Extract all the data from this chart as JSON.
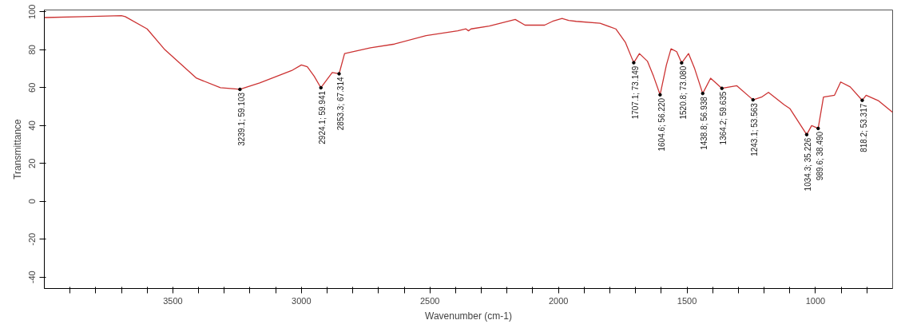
{
  "chart_data": {
    "type": "line",
    "xlabel": "Wavenumber (cm-1)",
    "ylabel": "Transmittance",
    "xlim": [
      4000,
      700
    ],
    "ylim": [
      -46,
      101
    ],
    "xticks": [
      {
        "value": 3900,
        "label": null
      },
      {
        "value": 3800,
        "label": null
      },
      {
        "value": 3700,
        "label": null
      },
      {
        "value": 3600,
        "label": null
      },
      3500,
      {
        "value": 3400,
        "label": null
      },
      {
        "value": 3300,
        "label": null
      },
      {
        "value": 3200,
        "label": null
      },
      {
        "value": 3100,
        "label": null
      },
      3000,
      {
        "value": 2900,
        "label": null
      },
      {
        "value": 2800,
        "label": null
      },
      {
        "value": 2700,
        "label": null
      },
      {
        "value": 2600,
        "label": null
      },
      2500,
      {
        "value": 2400,
        "label": null
      },
      {
        "value": 2300,
        "label": null
      },
      {
        "value": 2200,
        "label": null
      },
      {
        "value": 2100,
        "label": null
      },
      2000,
      {
        "value": 1900,
        "label": null
      },
      {
        "value": 1800,
        "label": null
      },
      {
        "value": 1700,
        "label": null
      },
      {
        "value": 1600,
        "label": null
      },
      1500,
      {
        "value": 1400,
        "label": null
      },
      {
        "value": 1300,
        "label": null
      },
      {
        "value": 1200,
        "label": null
      },
      {
        "value": 1100,
        "label": null
      },
      1000,
      {
        "value": 900,
        "label": null
      },
      {
        "value": 800,
        "label": null
      }
    ],
    "yticks": [
      -40,
      -20,
      0,
      20,
      40,
      60,
      80,
      100
    ],
    "grid": false,
    "line_style": "solid",
    "marker": "none",
    "series": [
      {
        "color": "#cc3333",
        "x": [
          4000,
          3850,
          3700,
          3685,
          3600,
          3531,
          3408,
          3315,
          3239.1,
          3162,
          3038,
          3000,
          2977,
          2950,
          2924.1,
          2880,
          2853.3,
          2832,
          2731,
          2638,
          2515,
          2392,
          2360,
          2350,
          2340,
          2269,
          2168,
          2130,
          2054,
          2023,
          1986,
          1960,
          1931,
          1838,
          1777,
          1740,
          1707.1,
          1685,
          1654,
          1630,
          1604.6,
          1580,
          1562,
          1540,
          1520.8,
          1494,
          1470,
          1438.8,
          1408,
          1364.2,
          1306,
          1243.1,
          1210,
          1183,
          1122,
          1100,
          1034.3,
          1015,
          989.6,
          969,
          926,
          902,
          865,
          818.2,
          803,
          754,
          700
        ],
        "values": [
          97,
          97.5,
          98,
          97.5,
          91,
          80,
          65,
          60,
          59.103,
          62.5,
          69,
          72,
          71,
          66,
          59.941,
          68,
          67.314,
          78,
          81,
          83,
          87.5,
          90,
          91,
          90,
          91,
          92.5,
          96,
          93,
          93,
          95,
          96.5,
          95.5,
          95,
          94,
          91,
          84,
          73.149,
          78,
          74,
          66,
          56.22,
          72,
          80.5,
          79,
          73.08,
          78,
          70,
          56.938,
          65,
          59.635,
          61,
          53.563,
          55,
          57.5,
          51,
          49,
          35.226,
          40,
          38.49,
          55,
          56,
          63,
          60.4,
          53.317,
          56,
          53,
          47
        ]
      }
    ],
    "annotations": [
      {
        "text": "3239.1; 59.103",
        "x": 3239.1,
        "y": 59.103
      },
      {
        "text": "2924.1; 59.941",
        "x": 2924.1,
        "y": 59.941
      },
      {
        "text": "2853.3; 67.314",
        "x": 2853.3,
        "y": 67.314
      },
      {
        "text": "1707.1; 73.149",
        "x": 1707.1,
        "y": 73.149
      },
      {
        "text": "1604.6; 56.220",
        "x": 1604.6,
        "y": 56.22
      },
      {
        "text": "1520.8; 73.080",
        "x": 1520.8,
        "y": 73.08
      },
      {
        "text": "1438.8; 56.938",
        "x": 1438.8,
        "y": 56.938
      },
      {
        "text": "1364.2; 59.635",
        "x": 1364.2,
        "y": 59.635
      },
      {
        "text": "1243.1; 53.563",
        "x": 1243.1,
        "y": 53.563
      },
      {
        "text": "1034.3; 35.226",
        "x": 1034.3,
        "y": 35.226
      },
      {
        "text": "989.6; 38.490",
        "x": 989.6,
        "y": 38.49
      },
      {
        "text": "818.2; 53.317",
        "x": 818.2,
        "y": 53.317
      }
    ]
  }
}
